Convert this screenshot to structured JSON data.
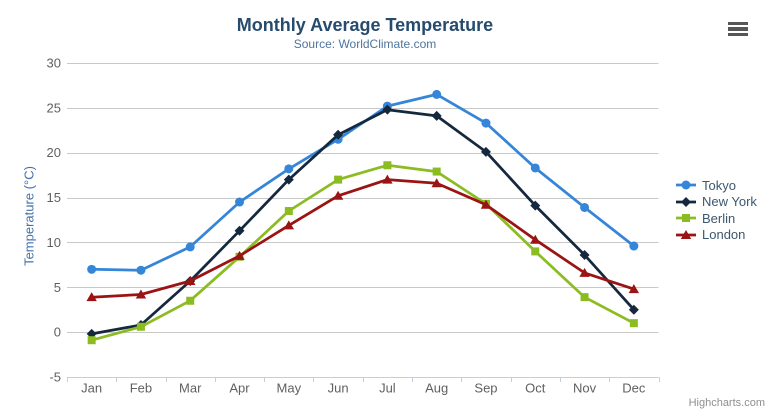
{
  "chart": {
    "title": "Monthly Average Temperature",
    "subtitle": "Source: WorldClimate.com",
    "credits": "Highcharts.com",
    "menu_icon": "hamburger-menu"
  },
  "chart_data": {
    "type": "line",
    "categories": [
      "Jan",
      "Feb",
      "Mar",
      "Apr",
      "May",
      "Jun",
      "Jul",
      "Aug",
      "Sep",
      "Oct",
      "Nov",
      "Dec"
    ],
    "series": [
      {
        "name": "Tokyo",
        "color": "#3585d8",
        "marker": "circle",
        "values": [
          7.0,
          6.9,
          9.5,
          14.5,
          18.2,
          21.5,
          25.2,
          26.5,
          23.3,
          18.3,
          13.9,
          9.6
        ]
      },
      {
        "name": "New York",
        "color": "#15283e",
        "marker": "diamond",
        "values": [
          -0.2,
          0.8,
          5.7,
          11.3,
          17.0,
          22.0,
          24.8,
          24.1,
          20.1,
          14.1,
          8.6,
          2.5
        ]
      },
      {
        "name": "Berlin",
        "color": "#8bbc21",
        "marker": "square",
        "values": [
          -0.9,
          0.6,
          3.5,
          8.4,
          13.5,
          17.0,
          18.6,
          17.9,
          14.3,
          9.0,
          3.9,
          1.0
        ]
      },
      {
        "name": "London",
        "color": "#9a1414",
        "marker": "triangle",
        "values": [
          3.9,
          4.2,
          5.7,
          8.5,
          11.9,
          15.2,
          17.0,
          16.6,
          14.2,
          10.3,
          6.6,
          4.8
        ]
      }
    ],
    "xlabel": "",
    "ylabel": "Temperature (°C)",
    "ylim": [
      -5,
      30
    ],
    "yticks": [
      -5,
      0,
      5,
      10,
      15,
      20,
      25,
      30
    ],
    "grid": true,
    "legend_position": "right"
  },
  "colors": {
    "grid_line": "#c9c9c9",
    "axis_line": "#c0d0e0",
    "tick_label": "#606060",
    "title": "#274b6d",
    "subtitle": "#4d759e",
    "axis_title": "#4572a7",
    "legend_label": "#3e576f",
    "credits": "#8f8f8f",
    "menu_icon": "#565656"
  }
}
